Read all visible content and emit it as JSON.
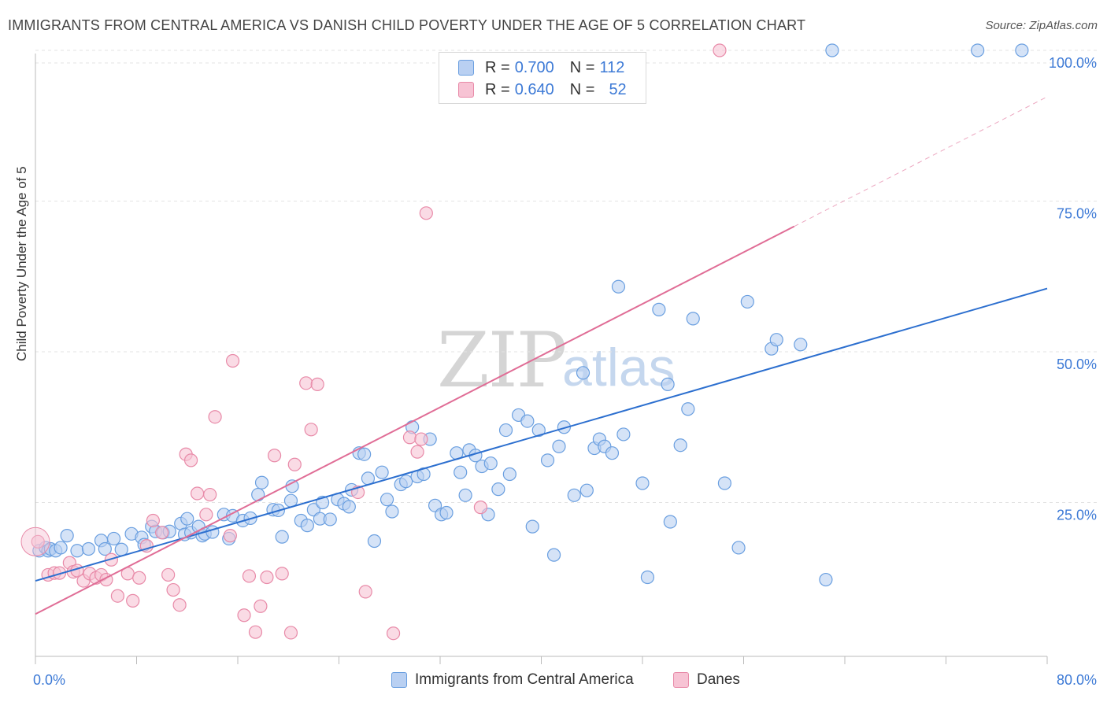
{
  "title": "IMMIGRANTS FROM CENTRAL AMERICA VS DANISH CHILD POVERTY UNDER THE AGE OF 5 CORRELATION CHART",
  "source": "Source: ZipAtlas.com",
  "watermark": {
    "zip": "ZIP",
    "atlas": "atlas"
  },
  "legend_top": [
    {
      "r_label": "R =",
      "r_value": "0.700",
      "n_label": "N =",
      "n_value": "112"
    },
    {
      "r_label": "R =",
      "r_value": "0.640",
      "n_label": "N =",
      "n_value": "52"
    }
  ],
  "colors": {
    "blue": "#6a9fe0",
    "blue_fill": "#b9d0f2",
    "blue_line": "#2c6fcf",
    "pink": "#e88aa8",
    "pink_fill": "#f7c3d4",
    "pink_line": "#e06d96",
    "axis_text": "#3d7ad6"
  },
  "chart_data": {
    "type": "scatter",
    "title": "IMMIGRANTS FROM CENTRAL AMERICA VS DANISH CHILD POVERTY UNDER THE AGE OF 5 CORRELATION CHART",
    "xlabel": "",
    "ylabel": "Child Poverty Under the Age of 5",
    "xlim": [
      0,
      80
    ],
    "ylim": [
      0,
      100
    ],
    "x_tick_labels": [
      "0.0%",
      "80.0%"
    ],
    "y_tick_labels": [
      "25.0%",
      "50.0%",
      "75.0%",
      "100.0%"
    ],
    "y_ticks": [
      25,
      50,
      75,
      100
    ],
    "legend_placement": "bottom",
    "grid": true,
    "series": [
      {
        "name": "Immigrants from Central America",
        "color": "#6a9fe0",
        "points": [
          [
            0.3,
            17
          ],
          [
            0.8,
            17.5
          ],
          [
            1,
            17
          ],
          [
            1.2,
            17.3
          ],
          [
            1.6,
            17
          ],
          [
            2,
            17.5
          ],
          [
            2.5,
            19.5
          ],
          [
            3.3,
            17
          ],
          [
            4.2,
            17.3
          ],
          [
            5.2,
            18.7
          ],
          [
            5.5,
            17.3
          ],
          [
            6.2,
            19
          ],
          [
            6.8,
            17.2
          ],
          [
            7.6,
            19.8
          ],
          [
            8.4,
            19.2
          ],
          [
            8.6,
            18
          ],
          [
            9.2,
            21
          ],
          [
            9.5,
            20.2
          ],
          [
            10.1,
            20
          ],
          [
            10.6,
            20.2
          ],
          [
            11.5,
            21.5
          ],
          [
            11.8,
            19.7
          ],
          [
            12,
            22.3
          ],
          [
            12.3,
            20
          ],
          [
            12.9,
            21
          ],
          [
            13.2,
            19.5
          ],
          [
            13.4,
            19.8
          ],
          [
            14,
            20.1
          ],
          [
            14.9,
            23
          ],
          [
            15.3,
            19
          ],
          [
            15.6,
            22.8
          ],
          [
            16.4,
            22
          ],
          [
            17,
            22.4
          ],
          [
            17.6,
            26.3
          ],
          [
            17.9,
            28.3
          ],
          [
            18.8,
            23.8
          ],
          [
            19.2,
            23.7
          ],
          [
            19.5,
            19.3
          ],
          [
            20.2,
            25.3
          ],
          [
            20.3,
            27.7
          ],
          [
            21,
            22
          ],
          [
            21.5,
            21.2
          ],
          [
            22,
            23.8
          ],
          [
            22.5,
            22.3
          ],
          [
            22.7,
            25
          ],
          [
            23.3,
            22.2
          ],
          [
            23.9,
            25.5
          ],
          [
            24.4,
            24.8
          ],
          [
            24.8,
            24.3
          ],
          [
            25,
            27.1
          ],
          [
            25.6,
            33.2
          ],
          [
            26,
            33
          ],
          [
            26.3,
            29
          ],
          [
            26.8,
            18.6
          ],
          [
            27.4,
            30
          ],
          [
            27.8,
            25.5
          ],
          [
            28.2,
            23.5
          ],
          [
            28.9,
            28
          ],
          [
            29.3,
            28.5
          ],
          [
            29.8,
            37.5
          ],
          [
            30.2,
            29.3
          ],
          [
            30.7,
            29.7
          ],
          [
            31.2,
            35.5
          ],
          [
            31.6,
            24.5
          ],
          [
            32.1,
            23
          ],
          [
            32.5,
            23.3
          ],
          [
            33.3,
            33.2
          ],
          [
            33.6,
            30
          ],
          [
            34,
            26.2
          ],
          [
            34.3,
            33.7
          ],
          [
            34.8,
            32.8
          ],
          [
            35.3,
            31
          ],
          [
            35.8,
            23
          ],
          [
            36,
            31.5
          ],
          [
            36.6,
            27.2
          ],
          [
            37.2,
            37
          ],
          [
            37.5,
            29.7
          ],
          [
            38.2,
            39.5
          ],
          [
            38.9,
            38.5
          ],
          [
            39.3,
            21
          ],
          [
            39.8,
            37
          ],
          [
            40.5,
            32
          ],
          [
            41,
            16.3
          ],
          [
            41.4,
            34.3
          ],
          [
            41.8,
            37.5
          ],
          [
            42.6,
            26.2
          ],
          [
            43.3,
            46.5
          ],
          [
            43.6,
            27
          ],
          [
            44.2,
            34
          ],
          [
            44.6,
            35.5
          ],
          [
            45,
            34.3
          ],
          [
            45.6,
            33.2
          ],
          [
            46.1,
            60.8
          ],
          [
            46.5,
            36.3
          ],
          [
            48,
            28.2
          ],
          [
            48.4,
            12.6
          ],
          [
            49.3,
            57
          ],
          [
            50,
            44.6
          ],
          [
            50.2,
            21.8
          ],
          [
            51,
            34.5
          ],
          [
            51.6,
            40.5
          ],
          [
            52,
            55.5
          ],
          [
            54.5,
            28.2
          ],
          [
            55.6,
            17.5
          ],
          [
            56.3,
            58.3
          ],
          [
            58.2,
            50.5
          ],
          [
            58.6,
            52
          ],
          [
            60.5,
            51.2
          ],
          [
            62.5,
            12.2
          ],
          [
            63,
            100
          ],
          [
            74.5,
            100
          ],
          [
            78,
            100
          ]
        ]
      },
      {
        "name": "Danes",
        "color": "#e88aa8",
        "points": [
          [
            0.2,
            18.5
          ],
          [
            1,
            13
          ],
          [
            1.5,
            13.3
          ],
          [
            1.9,
            13.3
          ],
          [
            2.7,
            15
          ],
          [
            3,
            13.5
          ],
          [
            3.3,
            13.7
          ],
          [
            3.8,
            12
          ],
          [
            4.3,
            13.2
          ],
          [
            4.8,
            12.5
          ],
          [
            5.2,
            13
          ],
          [
            5.6,
            12.2
          ],
          [
            6,
            15.5
          ],
          [
            6.5,
            9.5
          ],
          [
            7.3,
            13.2
          ],
          [
            7.7,
            8.7
          ],
          [
            8.2,
            12.5
          ],
          [
            8.8,
            17.8
          ],
          [
            9.3,
            22
          ],
          [
            10,
            20
          ],
          [
            10.5,
            13
          ],
          [
            10.9,
            10.5
          ],
          [
            11.4,
            8
          ],
          [
            11.9,
            33
          ],
          [
            12.3,
            32
          ],
          [
            12.8,
            26.5
          ],
          [
            13.5,
            23
          ],
          [
            13.8,
            26.3
          ],
          [
            14.2,
            39.2
          ],
          [
            15.4,
            19.5
          ],
          [
            15.6,
            48.5
          ],
          [
            16.5,
            6.3
          ],
          [
            16.9,
            12.8
          ],
          [
            17.4,
            3.5
          ],
          [
            17.8,
            7.8
          ],
          [
            18.3,
            12.6
          ],
          [
            18.9,
            32.8
          ],
          [
            19.5,
            13.2
          ],
          [
            20.2,
            3.4
          ],
          [
            20.5,
            31.3
          ],
          [
            21.4,
            44.8
          ],
          [
            21.8,
            37.1
          ],
          [
            22.3,
            44.6
          ],
          [
            25.5,
            26.7
          ],
          [
            26.1,
            10.2
          ],
          [
            28.3,
            3.3
          ],
          [
            29.6,
            35.8
          ],
          [
            30.2,
            33.4
          ],
          [
            30.5,
            35.5
          ],
          [
            30.9,
            73
          ],
          [
            35.2,
            24.2
          ],
          [
            54.1,
            100
          ]
        ]
      }
    ],
    "trend_lines": [
      {
        "series": "Immigrants from Central America",
        "x": [
          0,
          80
        ],
        "y": [
          12,
          60.5
        ]
      },
      {
        "series": "Danes",
        "x": [
          0,
          60
        ],
        "y": [
          6.5,
          70.8
        ],
        "dashed_extension_to": [
          80,
          92.3
        ]
      }
    ]
  },
  "bottom_legend": [
    "Immigrants from Central America",
    "Danes"
  ]
}
